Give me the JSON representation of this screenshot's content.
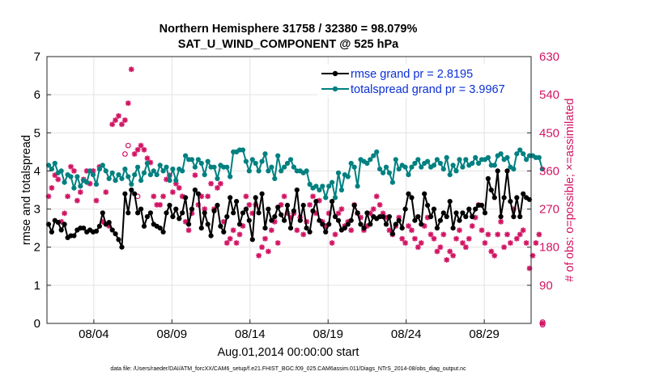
{
  "title_line1": "Northern Hemisphere 31758 / 32380 = 98.079%",
  "title_line2": "SAT_U_WIND_COMPONENT @ 525 hPa",
  "xlabel": "Aug.01,2014 00:00:00 start",
  "footnote": "data file: /Users/raeder/DAI/ATM_forcXX/CAM6_setup/f.e21.FHIST_BGC.f09_025.CAM6assim.011/Diags_NTrS_2014-08/obs_diag_output.nc",
  "colors": {
    "rmse": "#000000",
    "spread": "#008080",
    "obs": "#d11463",
    "grid": "#e2e2e2"
  },
  "chart_data": {
    "type": "line",
    "title": "Northern Hemisphere 31758 / 32380 = 98.079%\nSAT_U_WIND_COMPONENT @ 525 hPa",
    "xlabel": "Aug.01,2014 00:00:00 start",
    "ylabel": "rmse and totalspread",
    "y2label": "# of obs: o=possible; ×=assimilated",
    "xlim": [
      1,
      32
    ],
    "ylim": [
      0,
      7
    ],
    "y2lim": [
      0,
      630
    ],
    "grid": true,
    "legend_position": "top-right",
    "x_ticks": [
      {
        "x": 4,
        "label": "08/04"
      },
      {
        "x": 9,
        "label": "08/09"
      },
      {
        "x": 14,
        "label": "08/14"
      },
      {
        "x": 19,
        "label": "08/19"
      },
      {
        "x": 24,
        "label": "08/24"
      },
      {
        "x": 29,
        "label": "08/29"
      }
    ],
    "y_ticks": [
      "0",
      "1",
      "2",
      "3",
      "4",
      "5",
      "6",
      "7"
    ],
    "y2_ticks": [
      "0",
      "90",
      "180",
      "270",
      "360",
      "450",
      "540",
      "630"
    ],
    "series": [
      {
        "name": "rmse grand pr = 2.8195",
        "axis": "left",
        "values": [
          2.6,
          2.4,
          2.7,
          2.65,
          2.45,
          2.6,
          2.25,
          2.3,
          2.3,
          2.45,
          2.5,
          2.5,
          2.4,
          2.45,
          2.4,
          2.42,
          2.55,
          2.9,
          2.6,
          2.65,
          2.45,
          2.35,
          2.2,
          2.0,
          3.4,
          2.9,
          3.5,
          3.4,
          2.9,
          3.0,
          2.55,
          2.8,
          2.9,
          2.6,
          2.55,
          2.5,
          2.4,
          2.9,
          3.1,
          2.8,
          3.0,
          2.75,
          2.9,
          3.3,
          2.6,
          3.0,
          3.5,
          3.4,
          2.5,
          2.9,
          2.6,
          2.3,
          2.95,
          3.1,
          2.55,
          2.4,
          2.8,
          3.3,
          2.9,
          3.2,
          2.6,
          2.9,
          3.0,
          2.7,
          2.2,
          3.3,
          2.9,
          3.4,
          2.5,
          3.0,
          2.7,
          2.8,
          3.05,
          2.85,
          2.7,
          3.1,
          2.5,
          2.95,
          3.5,
          2.7,
          3.1,
          2.5,
          2.4,
          2.95,
          3.2,
          2.7,
          2.6,
          2.4,
          2.6,
          3.2,
          2.8,
          2.7,
          2.45,
          2.5,
          2.6,
          2.7,
          3.1,
          2.9,
          2.6,
          2.5,
          2.9,
          2.6,
          2.8,
          2.75,
          2.8,
          2.8,
          2.6,
          2.8,
          2.35,
          2.6,
          2.7,
          2.5,
          3.0,
          3.4,
          3.3,
          2.7,
          2.8,
          2.6,
          3.4,
          3.1,
          2.8,
          3.0,
          2.5,
          2.7,
          2.9,
          2.8,
          3.2,
          2.5,
          2.9,
          2.7,
          2.9,
          2.8,
          3.0,
          2.8,
          3.0,
          3.1,
          3.1,
          2.9,
          3.8,
          3.5,
          3.3,
          4.0,
          2.8,
          3.3,
          4.0,
          3.2,
          2.8,
          3.3,
          2.8,
          3.4,
          3.3,
          3.25
        ]
      },
      {
        "name": "totalspread grand pr = 3.9967",
        "axis": "left",
        "values": [
          4.15,
          4.05,
          4.2,
          3.95,
          4.0,
          3.7,
          3.9,
          3.85,
          3.55,
          3.85,
          3.6,
          3.75,
          3.7,
          4.0,
          3.9,
          3.65,
          4.05,
          4.15,
          4.0,
          3.8,
          3.95,
          3.75,
          3.9,
          3.8,
          4.05,
          3.85,
          3.65,
          3.9,
          4.1,
          3.75,
          3.95,
          4.2,
          3.9,
          4.0,
          3.9,
          4.15,
          4.0,
          4.1,
          3.75,
          4.05,
          3.75,
          4.05,
          4.0,
          4.4,
          4.3,
          4.3,
          4.1,
          4.3,
          4.2,
          3.9,
          4.25,
          4.1,
          4.1,
          3.8,
          4.15,
          4.1,
          4.1,
          3.85,
          4.5,
          4.5,
          4.55,
          4.55,
          4.25,
          4.0,
          4.3,
          4.2,
          4.0,
          4.25,
          4.45,
          4.0,
          4.1,
          3.8,
          4.4,
          4.0,
          4.1,
          4.2,
          4.3,
          4.1,
          4.0,
          4.0,
          3.95,
          4.0,
          3.65,
          3.55,
          3.6,
          3.5,
          3.6,
          3.3,
          3.6,
          3.7,
          3.3,
          3.95,
          3.5,
          3.9,
          3.85,
          4.2,
          4.1,
          3.6,
          4.3,
          4.25,
          4.2,
          4.3,
          4.4,
          4.5,
          4.05,
          3.95,
          4.1,
          3.95,
          3.7,
          4.3,
          4.05,
          4.15,
          4.1,
          3.9,
          4.1,
          4.2,
          4.3,
          4.1,
          4.2,
          4.25,
          4.1,
          4.15,
          4.3,
          4.2,
          4.05,
          4.35,
          3.9,
          4.15,
          4.0,
          4.3,
          4.1,
          4.3,
          4.15,
          4.2,
          4.35,
          4.2,
          4.3,
          4.3,
          4.35,
          4.15,
          4.15,
          4.4,
          4.45,
          4.3,
          4.35,
          4.1,
          4.05,
          4.45,
          4.55,
          4.45,
          4.3,
          4.4,
          4.4,
          4.35,
          4.35,
          4.05
        ]
      },
      {
        "name": "# of obs possible",
        "axis": "right",
        "values": [
          null,
          null,
          null,
          null,
          null,
          null,
          null,
          null,
          null,
          null,
          null,
          null,
          null,
          null,
          null,
          null,
          null,
          null,
          null,
          null,
          null,
          null,
          null,
          null,
          400,
          420,
          null,
          null,
          300,
          null,
          null,
          null,
          null,
          null,
          null,
          null,
          null,
          null,
          null,
          null,
          null,
          null,
          null,
          null,
          null,
          null,
          null,
          null,
          null,
          null,
          null,
          null,
          null,
          null,
          null,
          null,
          null,
          null,
          null,
          null,
          null,
          null,
          null,
          null,
          null,
          null,
          null,
          null,
          null,
          null,
          null,
          null,
          null,
          null,
          null,
          null,
          null,
          null,
          null,
          null,
          null,
          null,
          null,
          null,
          null,
          null,
          null,
          null,
          null,
          null,
          null,
          null,
          null,
          null,
          null,
          null,
          null,
          null,
          null,
          null,
          null,
          null,
          null,
          null,
          null,
          null,
          null,
          null,
          null,
          null,
          null,
          null,
          null,
          null,
          null,
          null,
          null,
          null,
          null,
          null,
          null,
          null,
          null,
          null,
          null,
          null,
          null,
          null,
          null,
          null,
          null,
          null,
          null,
          null,
          null,
          null,
          null,
          null,
          null,
          null,
          null,
          null,
          null,
          null,
          null,
          null,
          null,
          null,
          null,
          null,
          null,
          null,
          null,
          null
        ]
      },
      {
        "name": "# of obs assimilated",
        "axis": "right",
        "values": [
          300,
          320,
          350,
          340,
          240,
          260,
          300,
          370,
          360,
          290,
          310,
          340,
          360,
          330,
          360,
          290,
          370,
          240,
          310,
          230,
          470,
          480,
          490,
          470,
          480,
          520,
          600,
          400,
          410,
          420,
          410,
          390,
          380,
          300,
          280,
          280,
          300,
          340,
          350,
          310,
          330,
          320,
          300,
          240,
          220,
          260,
          350,
          280,
          300,
          270,
          300,
          330,
          270,
          320,
          330,
          240,
          190,
          200,
          220,
          190,
          210,
          230,
          300,
          280,
          260,
          280,
          160,
          180,
          200,
          170,
          220,
          240,
          190,
          280,
          300,
          260,
          250,
          260,
          220,
          250,
          210,
          240,
          280,
          300,
          260,
          290,
          240,
          230,
          260,
          190,
          210,
          260,
          270,
          230,
          240,
          220,
          280,
          260,
          250,
          220,
          230,
          260,
          270,
          300,
          280,
          260,
          250,
          220,
          210,
          230,
          250,
          200,
          190,
          230,
          220,
          200,
          180,
          190,
          230,
          250,
          210,
          200,
          170,
          180,
          210,
          150,
          170,
          160,
          200,
          220,
          190,
          180,
          200,
          230,
          250,
          280,
          220,
          190,
          210,
          170,
          160,
          210,
          240,
          180,
          210,
          190,
          270,
          200,
          210,
          220,
          190,
          130,
          160,
          190,
          210,
          0
        ]
      }
    ]
  }
}
